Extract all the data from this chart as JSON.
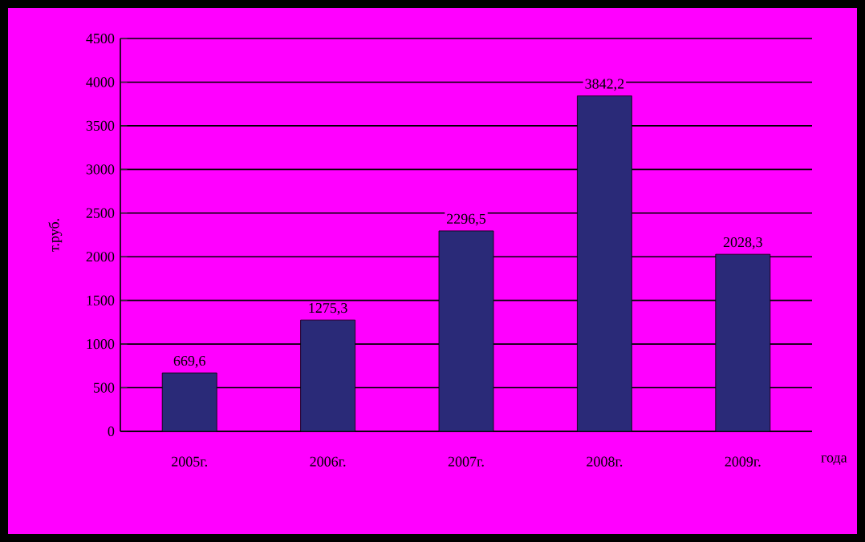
{
  "chart_data": {
    "type": "bar",
    "categories": [
      "2005г.",
      "2006г.",
      "2007г.",
      "2008г.",
      "2009г."
    ],
    "values": [
      669.6,
      1275.3,
      2296.5,
      3842.2,
      2028.3
    ],
    "value_labels": [
      "669,6",
      "1275,3",
      "2296,5",
      "3842,2",
      "2028,3"
    ],
    "color": "#2a2a78",
    "xlabel": "года",
    "ylabel": "т.руб.",
    "ylim": [
      0,
      4500
    ],
    "yticks": [
      0,
      500,
      1000,
      1500,
      2000,
      2500,
      3000,
      3500,
      4000,
      4500
    ],
    "grid": "y"
  }
}
